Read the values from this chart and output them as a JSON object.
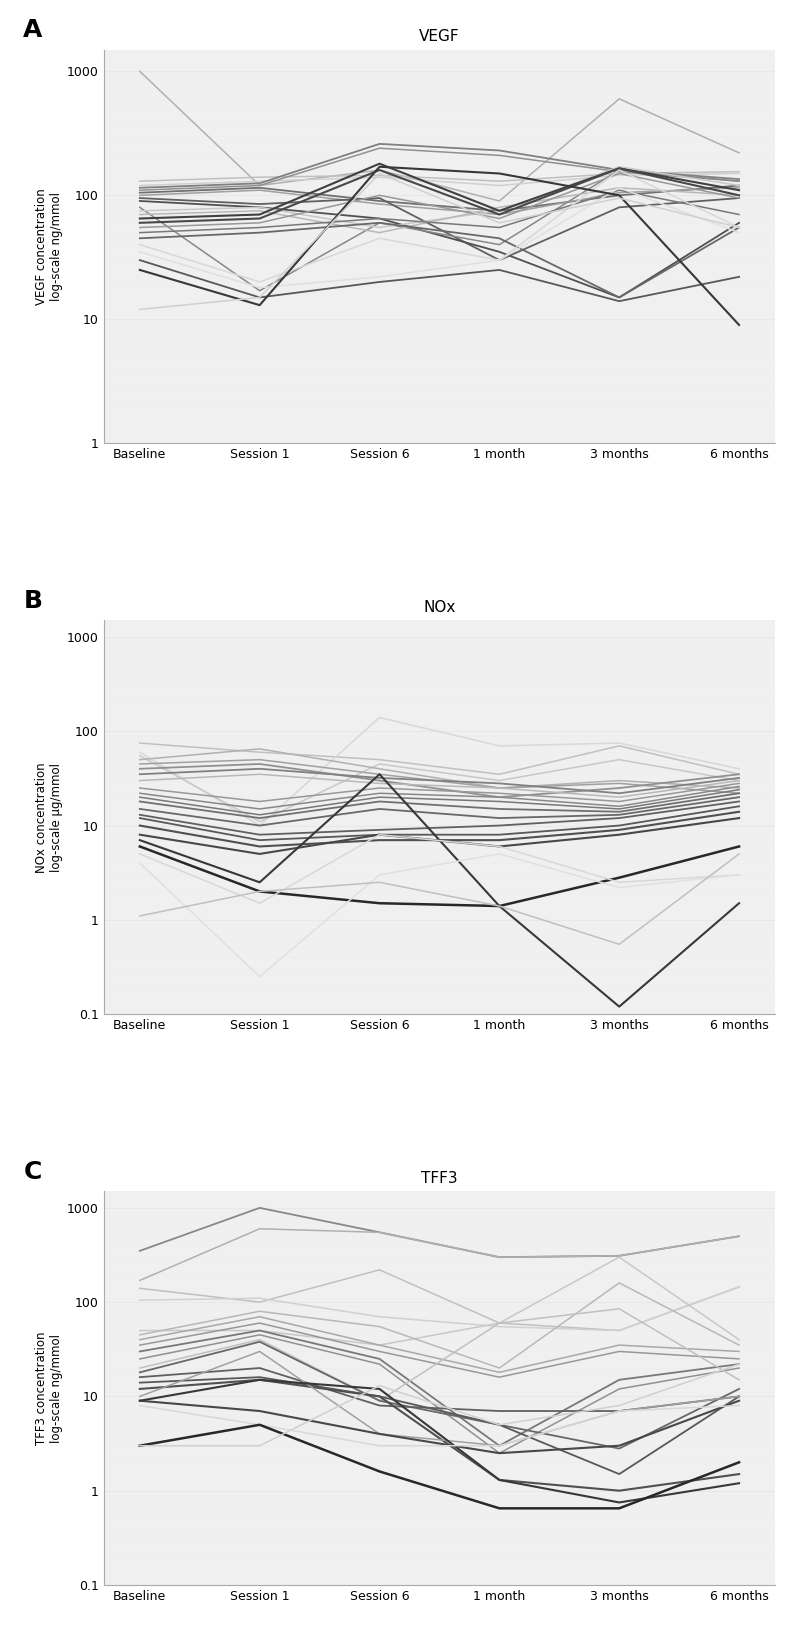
{
  "x_labels": [
    "Baseline",
    "Session 1",
    "Session 6",
    "1 month",
    "3 months",
    "6 months"
  ],
  "vegf_lines": [
    {
      "values": [
        1000,
        120,
        160,
        90,
        600,
        220
      ],
      "color": "#b0b0b0",
      "lw": 1.1
    },
    {
      "values": [
        130,
        140,
        145,
        130,
        150,
        155
      ],
      "color": "#c0c0c0",
      "lw": 1.1
    },
    {
      "values": [
        120,
        130,
        140,
        120,
        145,
        150
      ],
      "color": "#d0d0d0",
      "lw": 1.1
    },
    {
      "values": [
        115,
        125,
        260,
        230,
        160,
        135
      ],
      "color": "#808080",
      "lw": 1.3
    },
    {
      "values": [
        110,
        120,
        240,
        210,
        155,
        130
      ],
      "color": "#909090",
      "lw": 1.1
    },
    {
      "values": [
        105,
        115,
        90,
        75,
        100,
        120
      ],
      "color": "#707070",
      "lw": 1.3
    },
    {
      "values": [
        100,
        110,
        85,
        70,
        105,
        115
      ],
      "color": "#a0a0a0",
      "lw": 1.1
    },
    {
      "values": [
        95,
        85,
        95,
        30,
        80,
        95
      ],
      "color": "#606060",
      "lw": 1.3
    },
    {
      "values": [
        90,
        80,
        65,
        35,
        15,
        60
      ],
      "color": "#505050",
      "lw": 1.3
    },
    {
      "values": [
        80,
        17,
        60,
        40,
        160,
        130
      ],
      "color": "#888888",
      "lw": 1.1
    },
    {
      "values": [
        75,
        80,
        55,
        75,
        170,
        120
      ],
      "color": "#c8c8c8",
      "lw": 1.1
    },
    {
      "values": [
        70,
        75,
        50,
        80,
        115,
        100
      ],
      "color": "#b8b8b8",
      "lw": 1.1
    },
    {
      "values": [
        65,
        70,
        180,
        75,
        165,
        110
      ],
      "color": "#404040",
      "lw": 1.5
    },
    {
      "values": [
        60,
        65,
        160,
        70,
        165,
        100
      ],
      "color": "#484848",
      "lw": 1.5
    },
    {
      "values": [
        55,
        60,
        100,
        65,
        150,
        95
      ],
      "color": "#989898",
      "lw": 1.1
    },
    {
      "values": [
        50,
        55,
        65,
        55,
        110,
        70
      ],
      "color": "#787878",
      "lw": 1.1
    },
    {
      "values": [
        45,
        50,
        60,
        45,
        15,
        55
      ],
      "color": "#686868",
      "lw": 1.3
    },
    {
      "values": [
        40,
        20,
        45,
        30,
        160,
        55
      ],
      "color": "#d8d8d8",
      "lw": 1.1
    },
    {
      "values": [
        35,
        18,
        22,
        30,
        115,
        50
      ],
      "color": "#e0e0e0",
      "lw": 1.1
    },
    {
      "values": [
        30,
        15,
        20,
        25,
        14,
        22
      ],
      "color": "#585858",
      "lw": 1.3
    },
    {
      "values": [
        25,
        13,
        170,
        150,
        100,
        9
      ],
      "color": "#383838",
      "lw": 1.5
    },
    {
      "values": [
        12,
        15,
        150,
        60,
        95,
        55
      ],
      "color": "#d0d0d0",
      "lw": 1.1
    }
  ],
  "nox_lines": [
    {
      "values": [
        75,
        60,
        50,
        35,
        70,
        35
      ],
      "color": "#c0c0c0",
      "lw": 1.1
    },
    {
      "values": [
        60,
        10,
        140,
        70,
        75,
        40
      ],
      "color": "#d8d8d8",
      "lw": 1.1
    },
    {
      "values": [
        55,
        11,
        45,
        30,
        50,
        30
      ],
      "color": "#c8c8c8",
      "lw": 1.1
    },
    {
      "values": [
        50,
        65,
        40,
        25,
        30,
        25
      ],
      "color": "#b0b0b0",
      "lw": 1.1
    },
    {
      "values": [
        45,
        50,
        35,
        25,
        28,
        22
      ],
      "color": "#a0a0a0",
      "lw": 1.1
    },
    {
      "values": [
        40,
        45,
        30,
        20,
        25,
        35
      ],
      "color": "#909090",
      "lw": 1.3
    },
    {
      "values": [
        35,
        40,
        32,
        28,
        22,
        32
      ],
      "color": "#808080",
      "lw": 1.3
    },
    {
      "values": [
        30,
        35,
        28,
        25,
        20,
        30
      ],
      "color": "#b8b8b8",
      "lw": 1.1
    },
    {
      "values": [
        25,
        18,
        25,
        22,
        18,
        28
      ],
      "color": "#989898",
      "lw": 1.1
    },
    {
      "values": [
        22,
        15,
        22,
        20,
        16,
        26
      ],
      "color": "#888888",
      "lw": 1.1
    },
    {
      "values": [
        20,
        13,
        20,
        18,
        15,
        24
      ],
      "color": "#787878",
      "lw": 1.1
    },
    {
      "values": [
        18,
        12,
        18,
        15,
        14,
        22
      ],
      "color": "#707070",
      "lw": 1.3
    },
    {
      "values": [
        15,
        10,
        15,
        12,
        13,
        20
      ],
      "color": "#686868",
      "lw": 1.3
    },
    {
      "values": [
        13,
        8,
        9,
        10,
        12,
        18
      ],
      "color": "#606060",
      "lw": 1.3
    },
    {
      "values": [
        12,
        7,
        8,
        8,
        10,
        16
      ],
      "color": "#585858",
      "lw": 1.3
    },
    {
      "values": [
        10,
        6,
        7,
        7,
        9,
        14
      ],
      "color": "#505050",
      "lw": 1.5
    },
    {
      "values": [
        8,
        5,
        8,
        6,
        8,
        12
      ],
      "color": "#484848",
      "lw": 1.5
    },
    {
      "values": [
        7,
        2.5,
        35,
        1.4,
        0.12,
        1.5
      ],
      "color": "#383838",
      "lw": 1.5
    },
    {
      "values": [
        6,
        2,
        1.5,
        1.4,
        2.8,
        6
      ],
      "color": "#282828",
      "lw": 1.8
    },
    {
      "values": [
        5,
        1.5,
        8,
        6,
        2.5,
        3
      ],
      "color": "#d8d8d8",
      "lw": 1.1
    },
    {
      "values": [
        4,
        0.25,
        3,
        5,
        2.2,
        3
      ],
      "color": "#e0e0e0",
      "lw": 1.1
    },
    {
      "values": [
        1.1,
        2,
        2.5,
        1.4,
        0.55,
        5
      ],
      "color": "#c0c0c0",
      "lw": 1.1
    }
  ],
  "tff3_lines": [
    {
      "values": [
        350,
        1000,
        550,
        300,
        310,
        500
      ],
      "color": "#888888",
      "lw": 1.3
    },
    {
      "values": [
        170,
        600,
        550,
        300,
        310,
        500
      ],
      "color": "#b0b0b0",
      "lw": 1.1
    },
    {
      "values": [
        140,
        100,
        220,
        60,
        50,
        145
      ],
      "color": "#c0c0c0",
      "lw": 1.1
    },
    {
      "values": [
        105,
        110,
        70,
        55,
        50,
        145
      ],
      "color": "#d0d0d0",
      "lw": 1.1
    },
    {
      "values": [
        50,
        50,
        35,
        60,
        300,
        40
      ],
      "color": "#c8c8c8",
      "lw": 1.1
    },
    {
      "values": [
        45,
        80,
        55,
        20,
        160,
        35
      ],
      "color": "#b8b8b8",
      "lw": 1.1
    },
    {
      "values": [
        40,
        70,
        35,
        18,
        35,
        30
      ],
      "color": "#a8a8a8",
      "lw": 1.1
    },
    {
      "values": [
        35,
        60,
        30,
        16,
        30,
        25
      ],
      "color": "#989898",
      "lw": 1.1
    },
    {
      "values": [
        30,
        50,
        25,
        3,
        15,
        22
      ],
      "color": "#787878",
      "lw": 1.3
    },
    {
      "values": [
        25,
        45,
        22,
        2.5,
        12,
        20
      ],
      "color": "#909090",
      "lw": 1.1
    },
    {
      "values": [
        20,
        40,
        9,
        60,
        85,
        15
      ],
      "color": "#c0c0c0",
      "lw": 1.1
    },
    {
      "values": [
        18,
        38,
        9,
        5,
        2.8,
        12
      ],
      "color": "#686868",
      "lw": 1.3
    },
    {
      "values": [
        16,
        20,
        8,
        7,
        7,
        10
      ],
      "color": "#606060",
      "lw": 1.3
    },
    {
      "values": [
        14,
        16,
        10,
        5,
        1.5,
        10
      ],
      "color": "#585858",
      "lw": 1.3
    },
    {
      "values": [
        12,
        15,
        10,
        1.3,
        1.0,
        1.5
      ],
      "color": "#505050",
      "lw": 1.5
    },
    {
      "values": [
        10,
        30,
        4,
        3,
        7,
        10
      ],
      "color": "#a0a0a0",
      "lw": 1.1
    },
    {
      "values": [
        9,
        7,
        4,
        2.5,
        3,
        9
      ],
      "color": "#484848",
      "lw": 1.5
    },
    {
      "values": [
        9,
        15,
        12,
        1.3,
        0.75,
        1.2
      ],
      "color": "#383838",
      "lw": 1.5
    },
    {
      "values": [
        8,
        5,
        3,
        3,
        7,
        8
      ],
      "color": "#d8d8d8",
      "lw": 1.1
    },
    {
      "values": [
        3,
        5,
        1.6,
        0.65,
        0.65,
        2
      ],
      "color": "#282828",
      "lw": 1.8
    },
    {
      "values": [
        3,
        3,
        13,
        5,
        8,
        22
      ],
      "color": "#d0d0d0",
      "lw": 1.1
    }
  ],
  "vegf_ylabel": "VEGF concentration\nlog-scale ng/mmol",
  "nox_ylabel": "NOx concentration\nlog-scale μg/mmol",
  "tff3_ylabel": "TFF3 concentration\nlog-scale ng/mmol",
  "vegf_title": "VEGF",
  "nox_title": "NOx",
  "tff3_title": "TFF3",
  "vegf_ylim": [
    1,
    1500
  ],
  "nox_ylim": [
    0.1,
    1500
  ],
  "tff3_ylim": [
    0.1,
    1500
  ],
  "bg_color": "#ffffff",
  "plot_bg_color": "#f0f0f0"
}
